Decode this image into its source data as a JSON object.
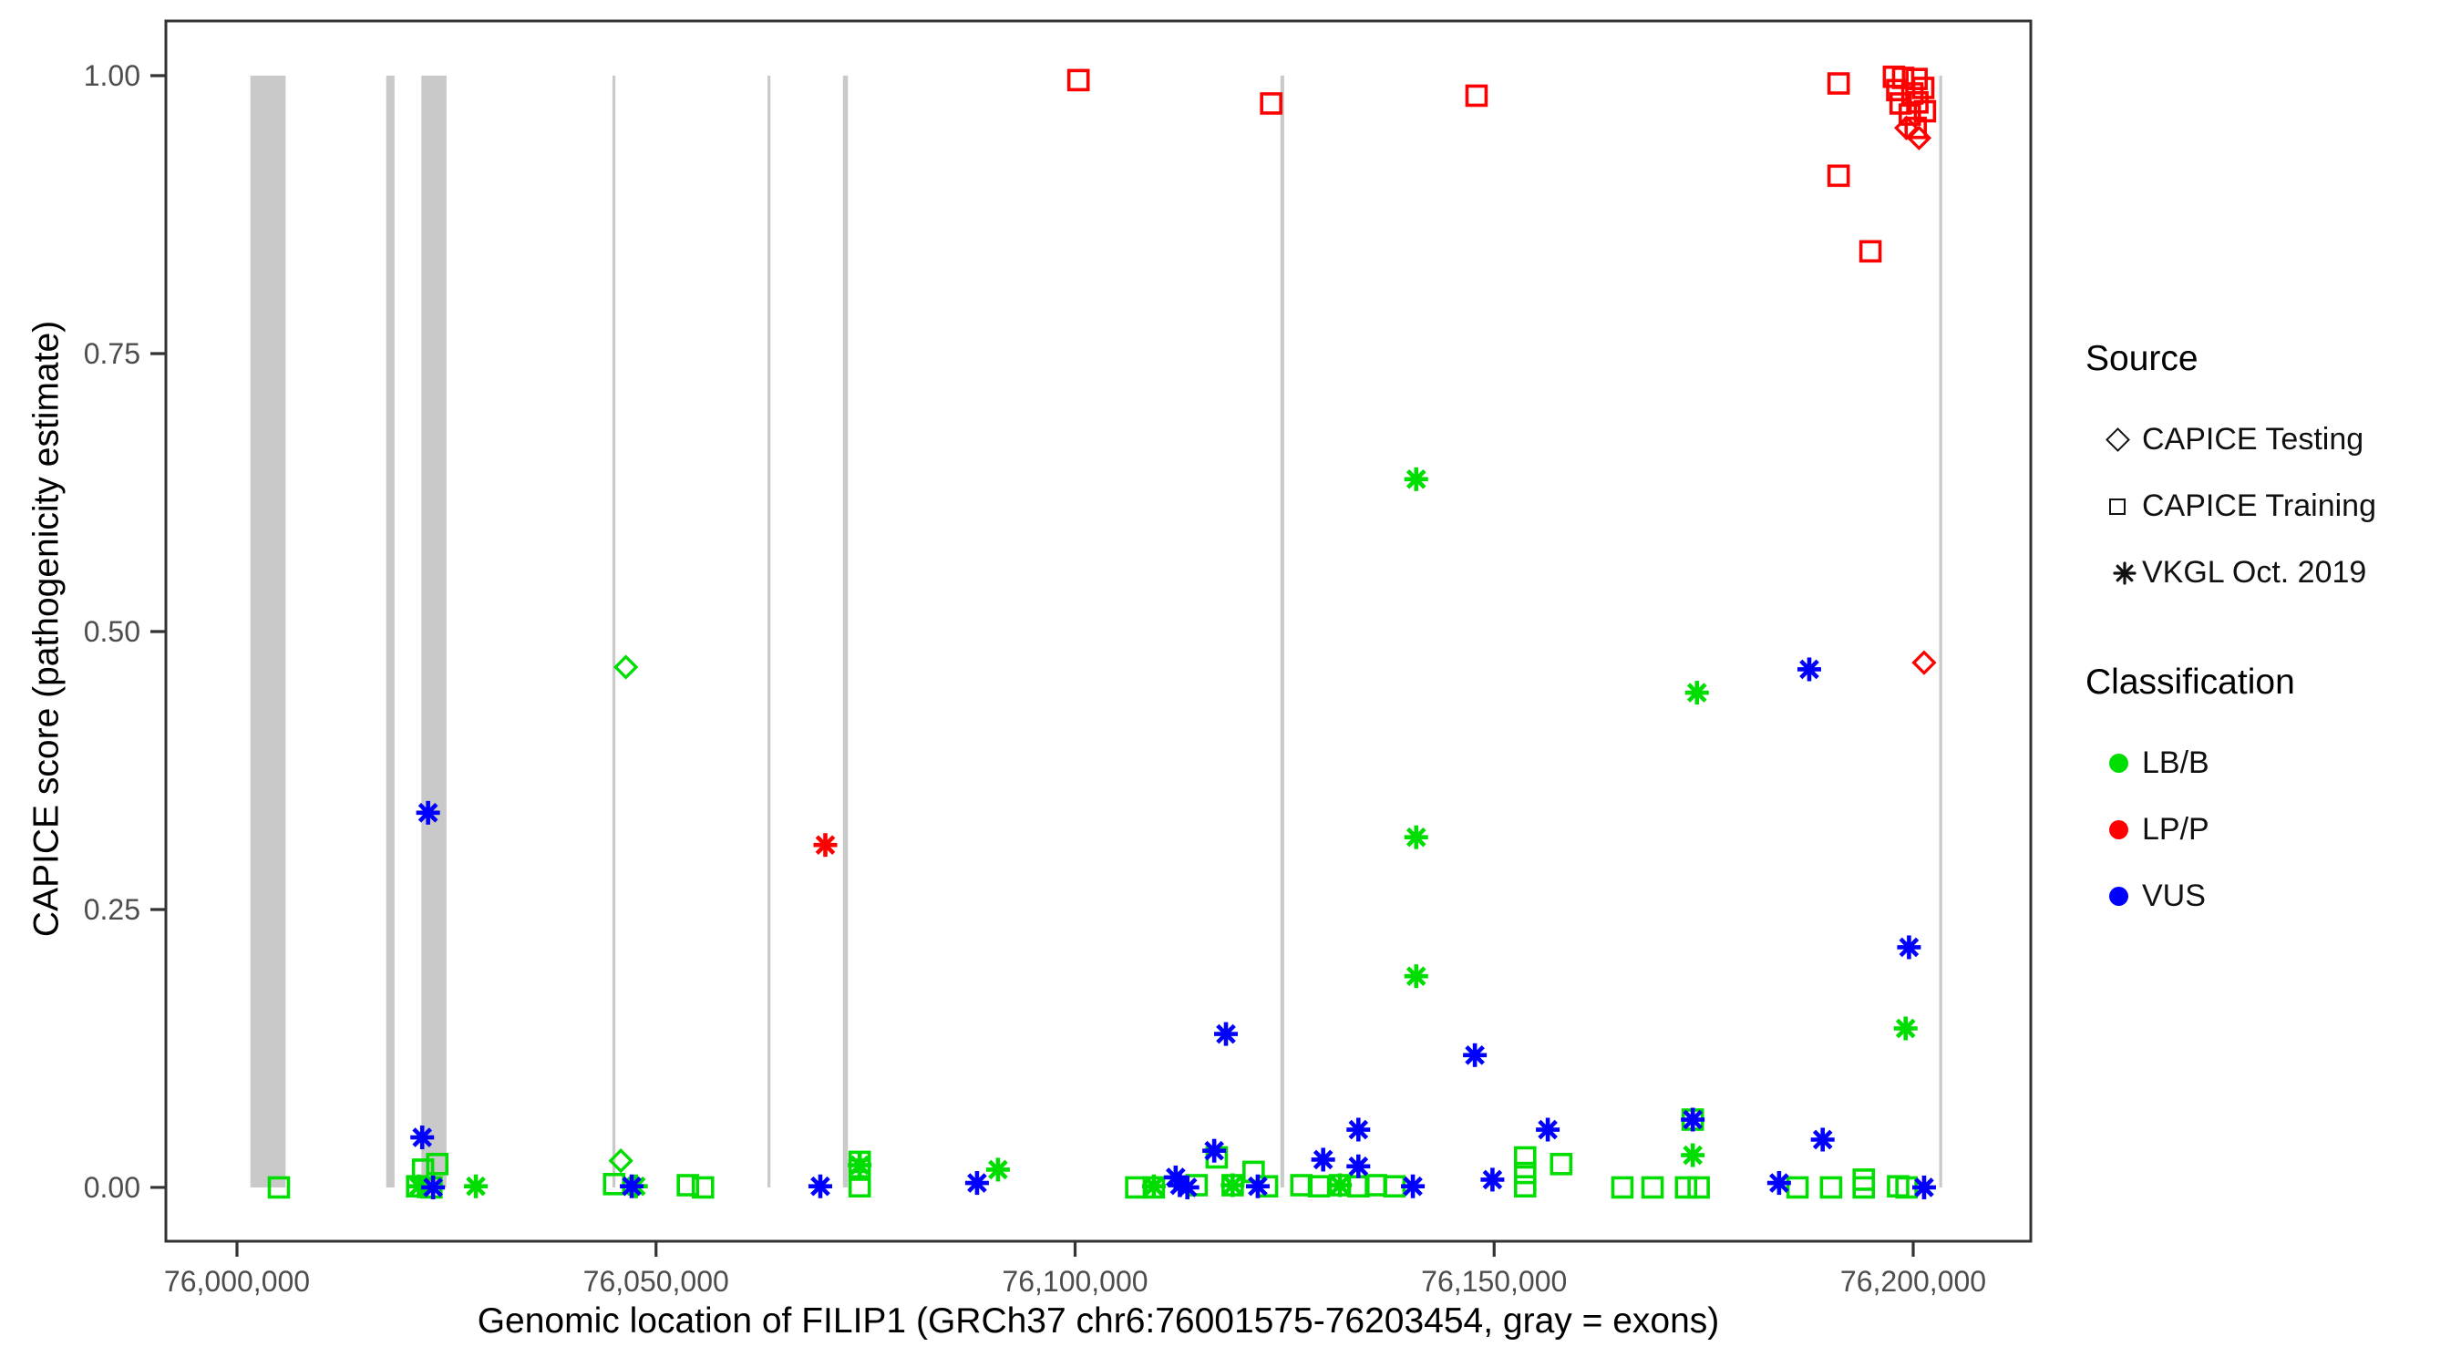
{
  "chart_data": {
    "type": "scatter",
    "xlabel": "Genomic location of FILIP1 (GRCh37 chr6:76001575-76203454, gray = exons)",
    "ylabel": "CAPICE score (pathogenicity estimate)",
    "x_domain": [
      75991517,
      76214030
    ],
    "y_domain": [
      -0.0484,
      1.0492
    ],
    "x_ticks": [
      {
        "value": 76000000,
        "label": "76,000,000"
      },
      {
        "value": 76050000,
        "label": "76,050,000"
      },
      {
        "value": 76100000,
        "label": "76,100,000"
      },
      {
        "value": 76150000,
        "label": "76,150,000"
      },
      {
        "value": 76200000,
        "label": "76,200,000"
      }
    ],
    "y_ticks": [
      {
        "value": 0.0,
        "label": "0.00"
      },
      {
        "value": 0.25,
        "label": "0.25"
      },
      {
        "value": 0.5,
        "label": "0.50"
      },
      {
        "value": 0.75,
        "label": "0.75"
      },
      {
        "value": 1.0,
        "label": "1.00"
      }
    ],
    "exon_color": "#C9C9C9",
    "exons_bp": [
      {
        "start": 76001600,
        "end": 76005800
      },
      {
        "start": 76017800,
        "end": 76018800
      },
      {
        "start": 76022000,
        "end": 76025000
      },
      {
        "start": 76044800,
        "end": 76045150
      },
      {
        "start": 76063300,
        "end": 76063650
      },
      {
        "start": 76072300,
        "end": 76072900
      },
      {
        "start": 76124500,
        "end": 76124950
      },
      {
        "start": 76203100,
        "end": 76203454
      }
    ],
    "class_colors": {
      "LB/B": "#00DD00",
      "LP/P": "#FF0000",
      "VUS": "#0000FF"
    },
    "series": [
      {
        "name": "CAPICE Testing",
        "shape": "diamond",
        "points": [
          {
            "bp": 76046400,
            "score": 0.468,
            "class": "LB/B"
          },
          {
            "bp": 76045800,
            "score": 0.024,
            "class": "LB/B"
          },
          {
            "bp": 76199200,
            "score": 0.953,
            "class": "LP/P"
          },
          {
            "bp": 76200700,
            "score": 0.944,
            "class": "LP/P"
          },
          {
            "bp": 76201300,
            "score": 0.472,
            "class": "LP/P"
          }
        ]
      },
      {
        "name": "CAPICE Training",
        "shape": "square",
        "points": [
          {
            "bp": 76100400,
            "score": 0.996,
            "class": "LP/P"
          },
          {
            "bp": 76123400,
            "score": 0.975,
            "class": "LP/P"
          },
          {
            "bp": 76147900,
            "score": 0.982,
            "class": "LP/P"
          },
          {
            "bp": 76191100,
            "score": 0.993,
            "class": "LP/P"
          },
          {
            "bp": 76191100,
            "score": 0.91,
            "class": "LP/P"
          },
          {
            "bp": 76194900,
            "score": 0.842,
            "class": "LP/P"
          },
          {
            "bp": 76197700,
            "score": 0.999,
            "class": "LP/P"
          },
          {
            "bp": 76198800,
            "score": 0.998,
            "class": "LP/P"
          },
          {
            "bp": 76200400,
            "score": 0.997,
            "class": "LP/P"
          },
          {
            "bp": 76198100,
            "score": 0.987,
            "class": "LP/P"
          },
          {
            "bp": 76199900,
            "score": 0.984,
            "class": "LP/P"
          },
          {
            "bp": 76201200,
            "score": 0.989,
            "class": "LP/P"
          },
          {
            "bp": 76198500,
            "score": 0.975,
            "class": "LP/P"
          },
          {
            "bp": 76200500,
            "score": 0.976,
            "class": "LP/P"
          },
          {
            "bp": 76199600,
            "score": 0.965,
            "class": "LP/P"
          },
          {
            "bp": 76201400,
            "score": 0.968,
            "class": "LP/P"
          },
          {
            "bp": 76200300,
            "score": 0.953,
            "class": "LP/P"
          },
          {
            "bp": 76005000,
            "score": 0.0,
            "class": "LB/B"
          },
          {
            "bp": 76022200,
            "score": 0.016,
            "class": "LB/B"
          },
          {
            "bp": 76023900,
            "score": 0.021,
            "class": "LB/B"
          },
          {
            "bp": 76021500,
            "score": 0.001,
            "class": "LB/B"
          },
          {
            "bp": 76023200,
            "score": 0.0,
            "class": "LB/B"
          },
          {
            "bp": 76045000,
            "score": 0.003,
            "class": "LB/B"
          },
          {
            "bp": 76053800,
            "score": 0.002,
            "class": "LB/B"
          },
          {
            "bp": 76055600,
            "score": 0.0,
            "class": "LB/B"
          },
          {
            "bp": 76074300,
            "score": 0.023,
            "class": "LB/B"
          },
          {
            "bp": 76074300,
            "score": 0.016,
            "class": "LB/B"
          },
          {
            "bp": 76074300,
            "score": 0.001,
            "class": "LB/B"
          },
          {
            "bp": 76107300,
            "score": 0.0,
            "class": "LB/B"
          },
          {
            "bp": 76109400,
            "score": 0.0,
            "class": "LB/B"
          },
          {
            "bp": 76114500,
            "score": 0.002,
            "class": "LB/B"
          },
          {
            "bp": 76116900,
            "score": 0.027,
            "class": "LB/B"
          },
          {
            "bp": 76118800,
            "score": 0.002,
            "class": "LB/B"
          },
          {
            "bp": 76121300,
            "score": 0.014,
            "class": "LB/B"
          },
          {
            "bp": 76122900,
            "score": 0.001,
            "class": "LB/B"
          },
          {
            "bp": 76127000,
            "score": 0.002,
            "class": "LB/B"
          },
          {
            "bp": 76129100,
            "score": 0.001,
            "class": "LB/B"
          },
          {
            "bp": 76131600,
            "score": 0.002,
            "class": "LB/B"
          },
          {
            "bp": 76133800,
            "score": 0.001,
            "class": "LB/B"
          },
          {
            "bp": 76135900,
            "score": 0.002,
            "class": "LB/B"
          },
          {
            "bp": 76138100,
            "score": 0.001,
            "class": "LB/B"
          },
          {
            "bp": 76153700,
            "score": 0.027,
            "class": "LB/B"
          },
          {
            "bp": 76153700,
            "score": 0.013,
            "class": "LB/B"
          },
          {
            "bp": 76153700,
            "score": 0.001,
            "class": "LB/B"
          },
          {
            "bp": 76158000,
            "score": 0.021,
            "class": "LB/B"
          },
          {
            "bp": 76165300,
            "score": 0.0,
            "class": "LB/B"
          },
          {
            "bp": 76168900,
            "score": 0.0,
            "class": "LB/B"
          },
          {
            "bp": 76172900,
            "score": 0.0,
            "class": "LB/B"
          },
          {
            "bp": 76174400,
            "score": 0.0,
            "class": "LB/B"
          },
          {
            "bp": 76173700,
            "score": 0.061,
            "class": "LB/B"
          },
          {
            "bp": 76186200,
            "score": 0.0,
            "class": "LB/B"
          },
          {
            "bp": 76190200,
            "score": 0.0,
            "class": "LB/B"
          },
          {
            "bp": 76194100,
            "score": 0.007,
            "class": "LB/B"
          },
          {
            "bp": 76194100,
            "score": 0.0,
            "class": "LB/B"
          },
          {
            "bp": 76198200,
            "score": 0.001,
            "class": "LB/B"
          },
          {
            "bp": 76199200,
            "score": 0.0,
            "class": "LB/B"
          }
        ]
      },
      {
        "name": "VKGL Oct. 2019",
        "shape": "asterisk",
        "points": [
          {
            "bp": 76070200,
            "score": 0.308,
            "class": "LP/P"
          },
          {
            "bp": 76140700,
            "score": 0.637,
            "class": "LB/B"
          },
          {
            "bp": 76140700,
            "score": 0.315,
            "class": "LB/B"
          },
          {
            "bp": 76140700,
            "score": 0.19,
            "class": "LB/B"
          },
          {
            "bp": 76174200,
            "score": 0.445,
            "class": "LB/B"
          },
          {
            "bp": 76199100,
            "score": 0.143,
            "class": "LB/B"
          },
          {
            "bp": 76090800,
            "score": 0.016,
            "class": "LB/B"
          },
          {
            "bp": 76028500,
            "score": 0.001,
            "class": "LB/B"
          },
          {
            "bp": 76047600,
            "score": 0.001,
            "class": "LB/B"
          },
          {
            "bp": 76074300,
            "score": 0.02,
            "class": "LB/B"
          },
          {
            "bp": 76173700,
            "score": 0.029,
            "class": "LB/B"
          },
          {
            "bp": 76109400,
            "score": 0.001,
            "class": "LB/B"
          },
          {
            "bp": 76118800,
            "score": 0.002,
            "class": "LB/B"
          },
          {
            "bp": 76131600,
            "score": 0.002,
            "class": "LB/B"
          },
          {
            "bp": 76021700,
            "score": 0.001,
            "class": "LB/B"
          },
          {
            "bp": 76022800,
            "score": 0.337,
            "class": "VUS"
          },
          {
            "bp": 76022100,
            "score": 0.045,
            "class": "VUS"
          },
          {
            "bp": 76023400,
            "score": 0.0,
            "class": "VUS"
          },
          {
            "bp": 76047100,
            "score": 0.001,
            "class": "VUS"
          },
          {
            "bp": 76069600,
            "score": 0.001,
            "class": "VUS"
          },
          {
            "bp": 76088300,
            "score": 0.004,
            "class": "VUS"
          },
          {
            "bp": 76118000,
            "score": 0.138,
            "class": "VUS"
          },
          {
            "bp": 76116600,
            "score": 0.033,
            "class": "VUS"
          },
          {
            "bp": 76112000,
            "score": 0.009,
            "class": "VUS"
          },
          {
            "bp": 76112500,
            "score": 0.002,
            "class": "VUS"
          },
          {
            "bp": 76113400,
            "score": 0.0,
            "class": "VUS"
          },
          {
            "bp": 76121800,
            "score": 0.001,
            "class": "VUS"
          },
          {
            "bp": 76129600,
            "score": 0.025,
            "class": "VUS"
          },
          {
            "bp": 76133800,
            "score": 0.052,
            "class": "VUS"
          },
          {
            "bp": 76133800,
            "score": 0.019,
            "class": "VUS"
          },
          {
            "bp": 76140300,
            "score": 0.001,
            "class": "VUS"
          },
          {
            "bp": 76147700,
            "score": 0.119,
            "class": "VUS"
          },
          {
            "bp": 76149800,
            "score": 0.007,
            "class": "VUS"
          },
          {
            "bp": 76156400,
            "score": 0.052,
            "class": "VUS"
          },
          {
            "bp": 76173700,
            "score": 0.061,
            "class": "VUS"
          },
          {
            "bp": 76184000,
            "score": 0.004,
            "class": "VUS"
          },
          {
            "bp": 76187600,
            "score": 0.466,
            "class": "VUS"
          },
          {
            "bp": 76189200,
            "score": 0.043,
            "class": "VUS"
          },
          {
            "bp": 76199500,
            "score": 0.216,
            "class": "VUS"
          },
          {
            "bp": 76201300,
            "score": 0.0,
            "class": "VUS"
          }
        ]
      }
    ],
    "panel": {
      "x0": 182,
      "y0": 23,
      "x1": 2228,
      "y1": 1362
    },
    "axis_text_color": "#4d4d4d",
    "panel_border_color": "#333333"
  },
  "legend": {
    "source_title": "Source",
    "source_items": [
      {
        "label": "CAPICE Testing",
        "shape": "diamond"
      },
      {
        "label": "CAPICE Training",
        "shape": "square"
      },
      {
        "label": "VKGL Oct. 2019",
        "shape": "asterisk"
      }
    ],
    "class_title": "Classification",
    "class_items": [
      {
        "label": "LB/B",
        "color": "#00DD00"
      },
      {
        "label": "LP/P",
        "color": "#FF0000"
      },
      {
        "label": "VUS",
        "color": "#0000FF"
      }
    ]
  }
}
